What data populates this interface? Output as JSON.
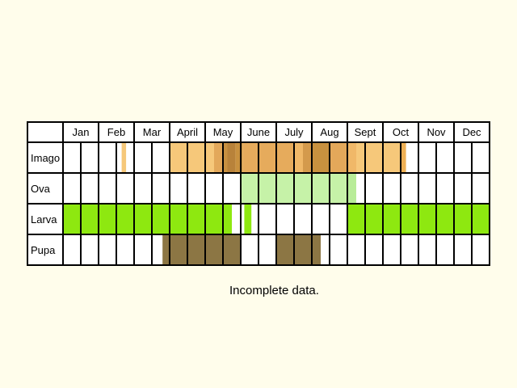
{
  "chart_data": {
    "type": "table",
    "title": "",
    "months": [
      "Jan",
      "Feb",
      "Mar",
      "April",
      "May",
      "June",
      "July",
      "Aug",
      "Sept",
      "Oct",
      "Nov",
      "Dec"
    ],
    "half_month_columns": 24,
    "rows": [
      {
        "label": "Imago",
        "segments": [
          {
            "start": 3.3,
            "end": 3.55,
            "color": "#f6c87a"
          },
          {
            "start": 6.0,
            "end": 8.5,
            "color": "#f6c87a"
          },
          {
            "start": 8.5,
            "end": 9.0,
            "color": "#e3a85a"
          },
          {
            "start": 9.0,
            "end": 9.25,
            "color": "#c89040"
          },
          {
            "start": 9.25,
            "end": 9.7,
            "color": "#b8823a"
          },
          {
            "start": 9.7,
            "end": 10.1,
            "color": "#c8913f"
          },
          {
            "start": 10.1,
            "end": 13.0,
            "color": "#e6ab5c"
          },
          {
            "start": 13.0,
            "end": 13.5,
            "color": "#f0b868"
          },
          {
            "start": 13.5,
            "end": 14.0,
            "color": "#d49a4c"
          },
          {
            "start": 14.0,
            "end": 15.0,
            "color": "#c8913f"
          },
          {
            "start": 15.0,
            "end": 16.0,
            "color": "#e3a85a"
          },
          {
            "start": 16.0,
            "end": 16.5,
            "color": "#f0b868"
          },
          {
            "start": 16.5,
            "end": 19.0,
            "color": "#f6c87a"
          },
          {
            "start": 19.0,
            "end": 19.3,
            "color": "#eeb055"
          }
        ]
      },
      {
        "label": "Ova",
        "segments": [
          {
            "start": 10.0,
            "end": 16.0,
            "color": "#c6f2a8"
          },
          {
            "start": 16.0,
            "end": 16.5,
            "color": "#b8ec98"
          }
        ]
      },
      {
        "label": "Larva",
        "segments": [
          {
            "start": 0.0,
            "end": 9.5,
            "color": "#8ee810"
          },
          {
            "start": 10.2,
            "end": 10.6,
            "color": "#8ee810"
          },
          {
            "start": 16.0,
            "end": 24.0,
            "color": "#8ee810"
          }
        ]
      },
      {
        "label": "Pupa",
        "segments": [
          {
            "start": 5.6,
            "end": 10.0,
            "color": "#8c7644"
          },
          {
            "start": 12.0,
            "end": 14.5,
            "color": "#8c7644"
          }
        ]
      }
    ],
    "note": "Incomplete data."
  }
}
